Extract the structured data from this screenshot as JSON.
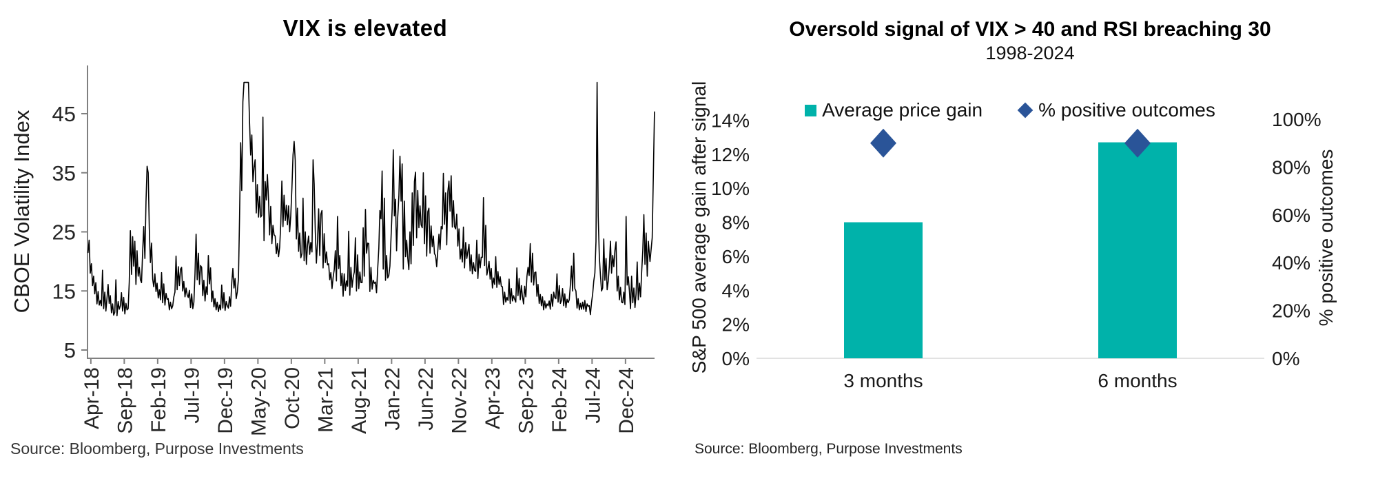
{
  "accent_colors": {
    "bar_teal": "#00B2AA",
    "diamond_navy": "#2A5498",
    "axis_gray": "#808080",
    "gridline_gray": "#D9D9D9",
    "line_black": "#000000"
  },
  "chart_data": [
    {
      "type": "line",
      "title": "VIX is elevated",
      "ylabel": "CBOE Volatility Index",
      "source": "Source: Bloomberg, Purpose Investments",
      "series_name": "CBOE Volatility Index (VIX), daily",
      "ylim": [
        5,
        50
      ],
      "yticks": [
        45,
        35,
        25,
        15,
        5
      ],
      "clip_max": 50.3,
      "grid": false,
      "xtick_interval_months": 5,
      "xtick_labels": [
        "Apr-18",
        "Sep-18",
        "Feb-19",
        "Jul-19",
        "Dec-19",
        "May-20",
        "Oct-20",
        "Mar-21",
        "Aug-21",
        "Jan-22",
        "Jun-22",
        "Nov-22",
        "Apr-23",
        "Sep-23",
        "Feb-24",
        "Jul-24",
        "Dec-24"
      ],
      "x_start_month": "Apr-18",
      "x_end_month": "Apr-25",
      "monthly_values": [
        [
          21.5,
          23.6,
          18.0,
          19.6,
          15.9,
          17.5
        ],
        [
          14.5,
          16.4,
          12.8,
          14.9,
          12.6,
          13.4
        ],
        [
          12.5,
          18.5,
          12.0,
          14.8,
          11.6,
          13.8
        ],
        [
          16.1,
          12.9,
          14.2,
          11.3,
          12.8,
          10.9
        ],
        [
          11.4,
          16.9,
          10.8,
          13.2,
          11.9,
          12.5
        ],
        [
          14.7,
          11.6,
          13.9,
          11.1,
          12.9,
          11.8
        ],
        [
          12.0,
          16.5,
          25.2,
          17.8,
          24.2,
          19.2
        ],
        [
          23.4,
          16.1,
          21.8,
          17.5,
          19.0,
          16.9
        ],
        [
          16.4,
          21.5,
          25.9,
          20.5,
          30.1,
          36.1
        ],
        [
          35.0,
          25.5,
          19.8,
          23.1,
          17.0,
          15.7
        ],
        [
          17.9,
          14.9,
          16.3,
          13.8,
          15.2,
          13.5
        ],
        [
          18.1,
          13.0,
          16.2,
          12.6,
          14.6,
          13.6
        ],
        [
          13.7,
          11.8,
          13.1,
          12.0,
          12.5,
          14.0
        ],
        [
          14.8,
          20.9,
          15.2,
          19.1,
          15.9,
          18.7
        ],
        [
          19.0,
          15.0,
          16.6,
          14.0,
          15.5,
          14.3
        ],
        [
          13.9,
          15.1,
          12.2,
          14.5,
          12.0,
          13.1
        ],
        [
          17.9,
          24.6,
          16.9,
          21.4,
          16.1,
          19.3
        ],
        [
          19.0,
          14.2,
          16.8,
          13.3,
          15.7,
          14.4
        ],
        [
          21.0,
          16.2,
          18.9,
          13.2,
          15.0,
          12.3
        ],
        [
          13.7,
          11.8,
          13.1,
          11.5,
          12.6,
          11.8
        ],
        [
          16.0,
          12.1,
          14.7,
          11.7,
          13.2,
          12.5
        ],
        [
          12.1,
          14.0,
          12.4,
          16.4,
          18.8,
          15.5
        ],
        [
          17.1,
          13.7,
          14.8,
          17.1,
          27.6,
          40.1
        ],
        [
          32.0,
          47.0,
          50.3,
          50.3,
          50.3,
          50.3
        ],
        [
          50.3,
          43.5,
          38.0,
          41.4,
          33.5,
          35.9
        ],
        [
          37.2,
          28.2,
          33.0,
          27.5,
          31.0,
          27.5
        ],
        [
          27.8,
          44.4,
          23.5,
          33.5,
          30.4,
          34.7
        ],
        [
          30.6,
          24.5,
          29.3,
          23.0,
          26.1,
          24.5
        ],
        [
          24.3,
          21.3,
          23.0,
          20.8,
          22.4,
          26.4
        ],
        [
          33.6,
          25.9,
          31.2,
          26.9,
          29.5,
          26.2
        ],
        [
          29.4,
          25.0,
          27.7,
          32.5,
          38.0,
          40.3
        ],
        [
          37.1,
          23.8,
          29.0,
          21.7,
          24.8,
          20.6
        ],
        [
          21.3,
          30.7,
          20.1,
          25.0,
          19.5,
          22.8
        ],
        [
          24.3,
          21.2,
          23.2,
          21.6,
          37.2,
          33.1
        ],
        [
          25.1,
          19.7,
          23.3,
          28.9,
          21.0,
          28.0
        ],
        [
          28.6,
          18.9,
          24.7,
          19.8,
          21.6,
          19.4
        ],
        [
          19.6,
          16.9,
          18.1,
          15.4,
          17.3,
          18.6
        ],
        [
          21.8,
          16.7,
          27.6,
          18.8,
          21.0,
          15.9
        ],
        [
          18.0,
          14.1,
          17.9,
          15.1,
          16.7,
          15.8
        ],
        [
          25.1,
          14.3,
          19.0,
          15.6,
          17.3,
          18.2
        ],
        [
          24.0,
          15.0,
          21.1,
          15.4,
          18.2,
          16.4
        ],
        [
          16.4,
          25.7,
          17.5,
          28.8,
          21.4,
          23.1
        ],
        [
          23.0,
          14.9,
          19.0,
          15.3,
          16.8,
          16.3
        ],
        [
          16.5,
          14.7,
          18.6,
          22.2,
          28.6,
          27.2
        ],
        [
          35.3,
          18.7,
          30.7,
          16.8,
          21.0,
          17.2
        ],
        [
          17.6,
          19.2,
          23.9,
          28.9,
          38.9,
          27.7
        ],
        [
          30.5,
          21.8,
          27.4,
          31.0,
          37.8,
          30.2
        ],
        [
          36.5,
          18.7,
          30.2,
          20.8,
          23.6,
          20.6
        ],
        [
          18.6,
          25.0,
          19.6,
          31.6,
          22.7,
          33.5
        ],
        [
          35.1,
          24.0,
          32.0,
          25.7,
          29.4,
          26.2
        ],
        [
          25.7,
          35.0,
          23.0,
          31.1,
          20.9,
          28.4
        ],
        [
          29.0,
          21.4,
          26.0,
          22.5,
          24.3,
          21.3
        ],
        [
          21.0,
          19.1,
          21.8,
          24.6,
          22.0,
          25.9
        ],
        [
          25.5,
          34.9,
          26.3,
          31.6,
          22.8,
          31.8
        ],
        [
          33.6,
          28.5,
          34.5,
          25.8,
          30.3,
          25.9
        ],
        [
          25.5,
          28.0,
          22.6,
          25.5,
          20.4,
          22.1
        ],
        [
          19.9,
          25.8,
          18.9,
          23.2,
          20.5,
          21.7
        ],
        [
          22.9,
          18.4,
          21.1,
          17.9,
          19.8,
          18.5
        ],
        [
          18.3,
          23.6,
          17.1,
          21.2,
          18.9,
          20.7
        ],
        [
          20.7,
          30.8,
          19.3,
          26.1,
          17.7,
          18.7
        ],
        [
          20.0,
          17.0,
          18.8,
          15.5,
          17.2,
          16.1
        ],
        [
          20.8,
          15.6,
          18.3,
          16.1,
          17.4,
          15.8
        ],
        [
          15.7,
          12.7,
          14.8,
          13.1,
          13.9,
          13.4
        ],
        [
          17.0,
          12.9,
          15.4,
          13.3,
          14.2,
          13.6
        ],
        [
          13.1,
          18.9,
          14.2,
          17.1,
          13.5,
          15.9
        ],
        [
          14.0,
          12.8,
          15.8,
          14.0,
          17.5,
          19.0
        ],
        [
          17.6,
          23.0,
          16.5,
          21.4,
          16.0,
          18.1
        ],
        [
          18.2,
          14.1,
          16.1,
          12.9,
          14.4,
          12.5
        ],
        [
          14.0,
          11.8,
          13.3,
          12.1,
          12.8,
          12.5
        ],
        [
          13.3,
          11.9,
          14.4,
          12.4,
          14.8,
          13.9
        ],
        [
          13.7,
          17.9,
          13.1,
          15.9,
          12.9,
          13.4
        ],
        [
          15.4,
          12.5,
          14.5,
          12.2,
          13.6,
          13.0
        ],
        [
          13.5,
          16.0,
          19.2,
          15.0,
          21.4,
          15.4
        ],
        [
          15.0,
          12.1,
          13.7,
          11.8,
          12.9,
          11.9
        ],
        [
          13.1,
          11.9,
          13.4,
          11.5,
          12.8,
          12.4
        ],
        [
          12.5,
          11.0,
          13.0,
          14.5,
          16.7,
          18.0
        ],
        [
          23.4,
          50.3,
          27.7,
          20.7,
          17.6,
          15.0
        ],
        [
          15.5,
          23.8,
          16.8,
          20.5,
          15.2,
          16.7
        ],
        [
          19.3,
          23.4,
          18.0,
          21.0,
          19.1,
          21.9
        ],
        [
          23.3,
          15.0,
          17.5,
          13.5,
          15.6,
          13.1
        ],
        [
          13.0,
          14.8,
          12.7,
          27.6,
          16.0,
          17.4
        ],
        [
          15.0,
          12.0,
          17.5,
          13.0,
          15.5,
          12.2
        ],
        [
          14.5,
          19.9,
          13.5,
          16.3,
          14.0,
          18.2
        ],
        [
          21.8,
          27.9,
          19.5,
          24.8,
          17.5,
          23.4
        ],
        [
          20.0,
          24.0,
          45.3
        ]
      ]
    },
    {
      "type": "bar",
      "title": "Oversold signal of VIX > 40 and RSI breaching 30",
      "subtitle": "1998-2024",
      "source": "Source: Bloomberg, Purpose Investments",
      "categories": [
        "3 months",
        "6 months"
      ],
      "series": [
        {
          "name": "Average price gain",
          "type": "bar",
          "axis": "left",
          "values_pct": [
            8.0,
            12.7
          ],
          "color": "#00B2AA"
        },
        {
          "name": "% positive outcomes",
          "type": "scatter-diamond",
          "axis": "right",
          "values_pct": [
            90,
            90
          ],
          "color": "#2A5498"
        }
      ],
      "left_axis": {
        "label": "S&P 500 average gain after signal",
        "ticks": [
          "14%",
          "12%",
          "10%",
          "8%",
          "6%",
          "4%",
          "2%",
          "0%"
        ],
        "max": 14
      },
      "right_axis": {
        "label": "% positive outcomes",
        "ticks": [
          "100%",
          "80%",
          "60%",
          "40%",
          "20%",
          "0%"
        ],
        "max": 100
      },
      "grid": false,
      "legend_position": "top"
    }
  ]
}
